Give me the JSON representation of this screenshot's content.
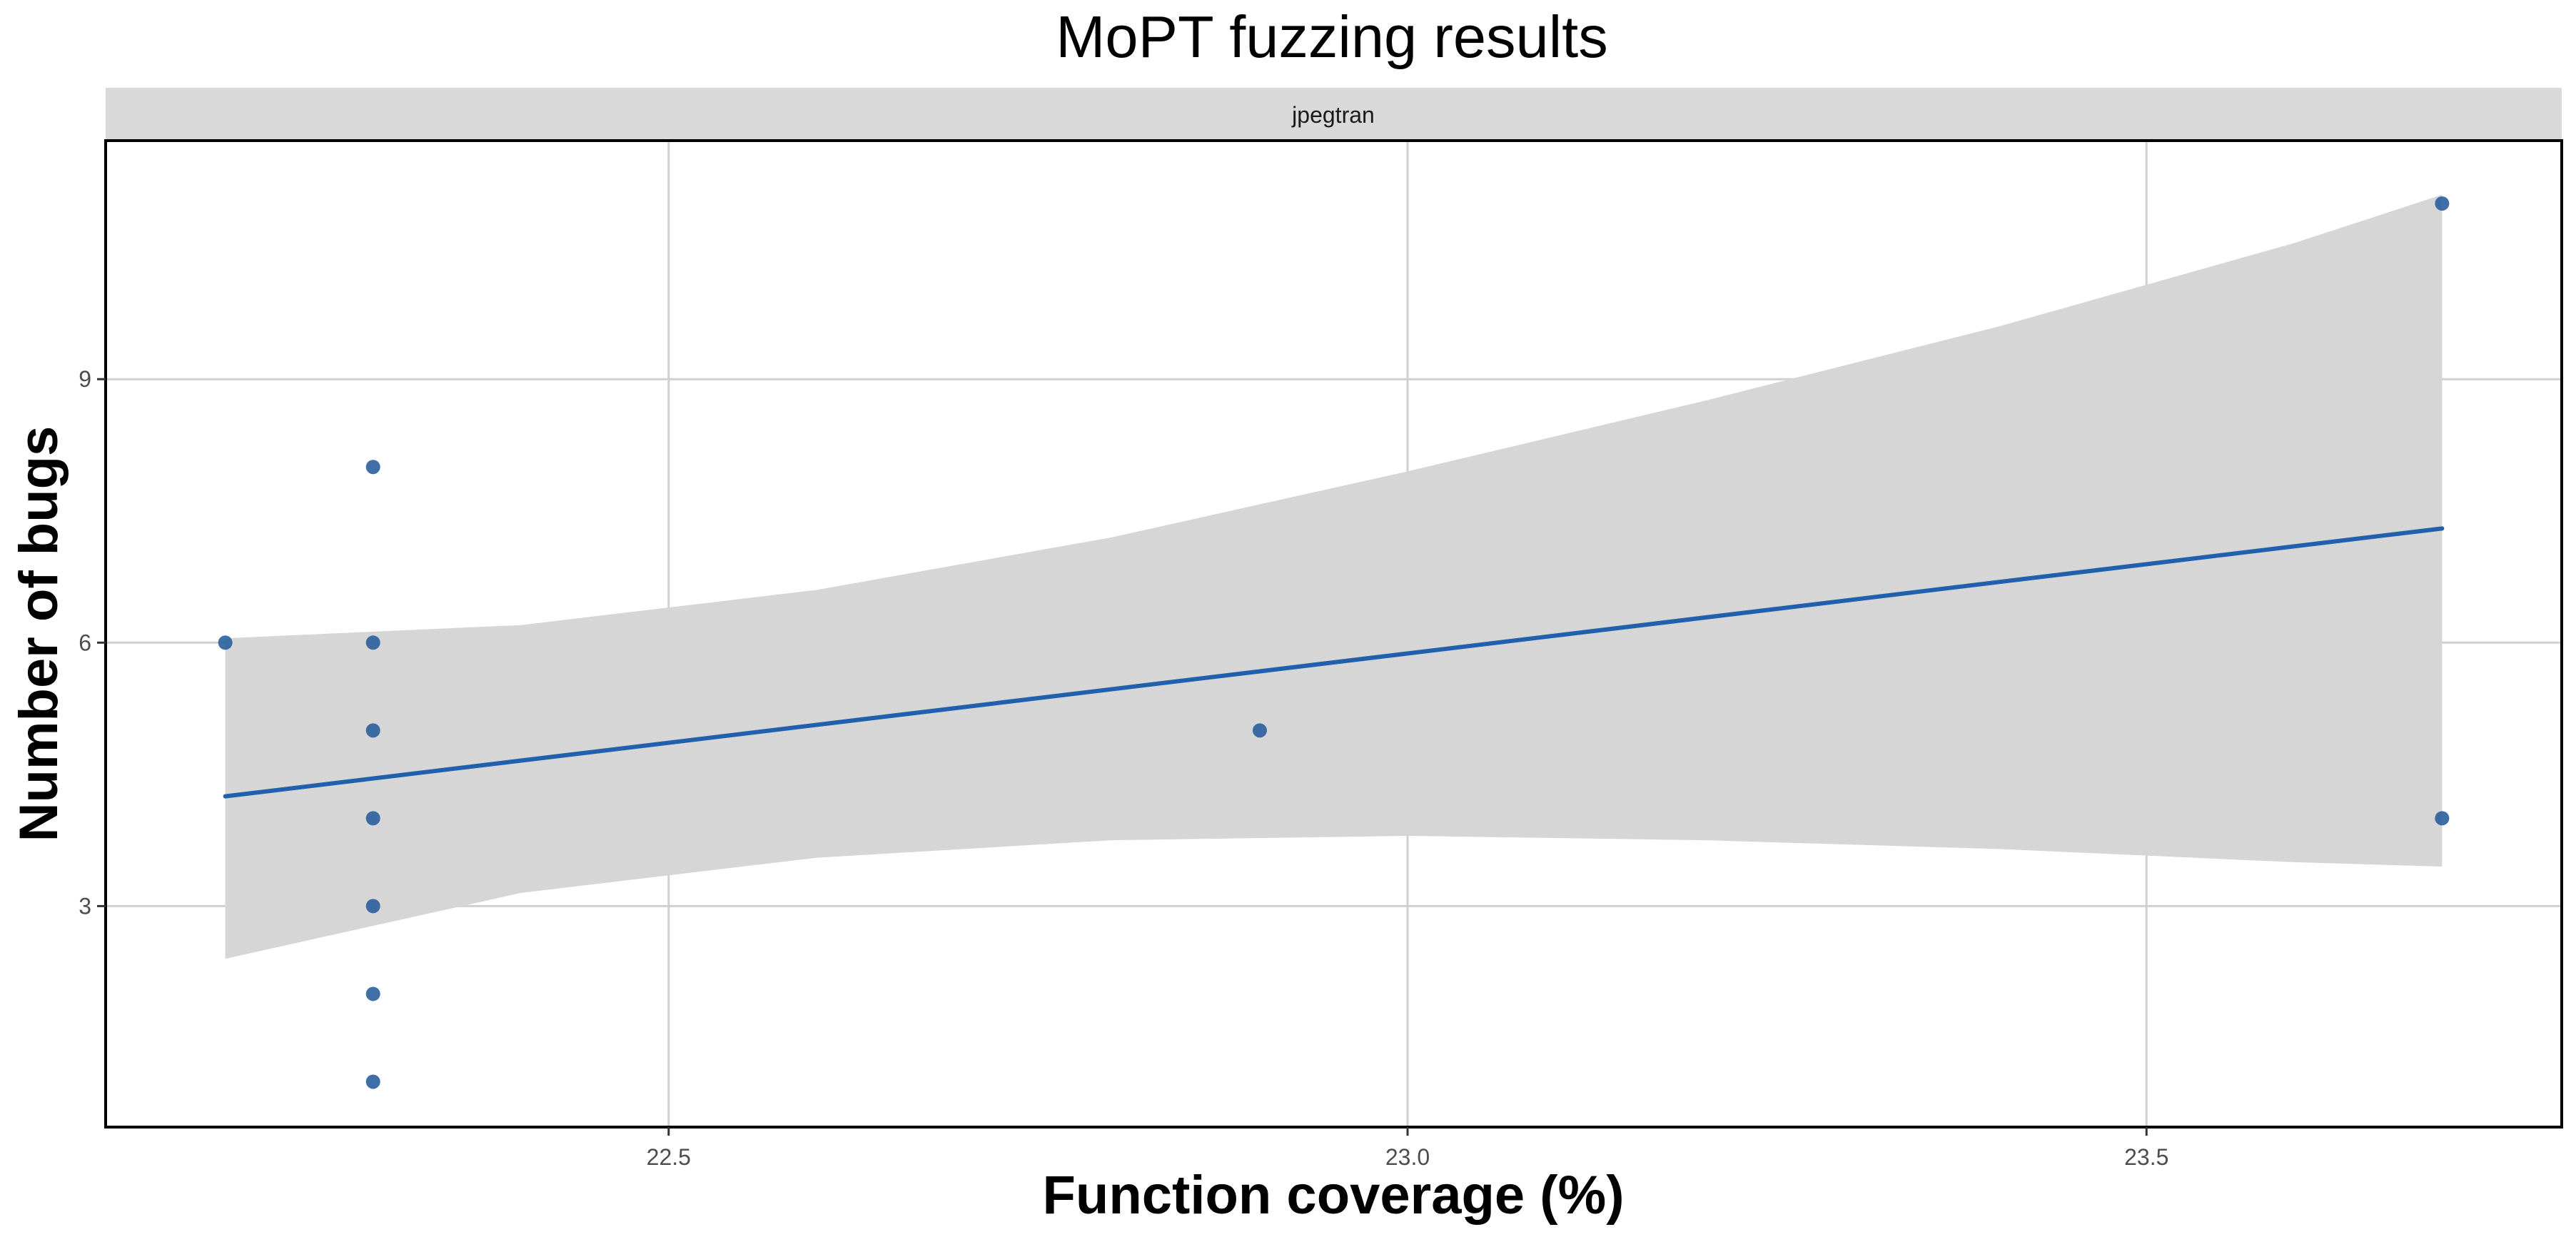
{
  "chart_data": {
    "type": "scatter",
    "title": "MoPT fuzzing results",
    "facet_label": "jpegtran",
    "xlabel": "Function coverage (%)",
    "ylabel": "Number of bugs",
    "xlim": [
      22.12,
      23.78
    ],
    "ylim": [
      0.5,
      11.7
    ],
    "x_ticks": [
      22.5,
      23.0,
      23.5
    ],
    "x_tick_labels": [
      "22.5",
      "23.0",
      "23.5"
    ],
    "y_ticks": [
      3,
      6,
      9
    ],
    "y_tick_labels": [
      "3",
      "6",
      "9"
    ],
    "grid": true,
    "points": [
      {
        "x": 22.2,
        "y": 6
      },
      {
        "x": 22.3,
        "y": 8
      },
      {
        "x": 22.3,
        "y": 6
      },
      {
        "x": 22.3,
        "y": 5
      },
      {
        "x": 22.3,
        "y": 4
      },
      {
        "x": 22.3,
        "y": 3
      },
      {
        "x": 22.3,
        "y": 2
      },
      {
        "x": 22.3,
        "y": 1
      },
      {
        "x": 22.9,
        "y": 5
      },
      {
        "x": 23.7,
        "y": 11
      },
      {
        "x": 23.7,
        "y": 4
      }
    ],
    "fit": {
      "method": "linear",
      "x": [
        22.2,
        23.7
      ],
      "y": [
        4.25,
        7.3
      ]
    },
    "confidence_band": {
      "x": [
        22.2,
        22.4,
        22.6,
        22.8,
        23.0,
        23.2,
        23.4,
        23.6,
        23.7
      ],
      "lower": [
        2.4,
        3.15,
        3.55,
        3.75,
        3.8,
        3.75,
        3.65,
        3.5,
        3.45
      ],
      "upper": [
        6.05,
        6.2,
        6.6,
        7.2,
        7.95,
        8.75,
        9.6,
        10.55,
        11.1
      ]
    },
    "colors": {
      "point": "#2b5f9e",
      "line": "#2160ad",
      "band": "#d6d6d6",
      "grid": "#d0d0d0",
      "strip_bg": "#d9d9d9",
      "panel_border": "#000000"
    }
  }
}
